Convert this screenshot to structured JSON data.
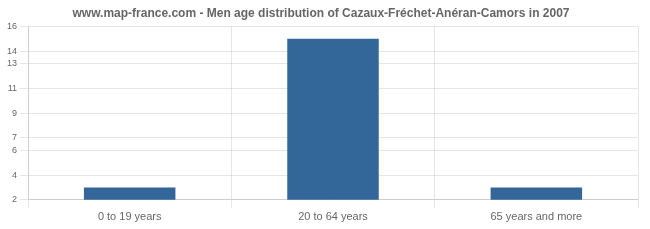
{
  "chart_data": {
    "type": "bar",
    "title": "www.map-france.com - Men age distribution of Cazaux-Fréchet-Anéran-Camors in 2007",
    "categories": [
      "0 to 19 years",
      "20 to 64 years",
      "65 years and more"
    ],
    "values": [
      3,
      15,
      3
    ],
    "color": "#336699",
    "ylim": [
      2,
      16
    ],
    "yticks": [
      2,
      4,
      6,
      7,
      9,
      11,
      13,
      14,
      16
    ],
    "grid": true
  }
}
